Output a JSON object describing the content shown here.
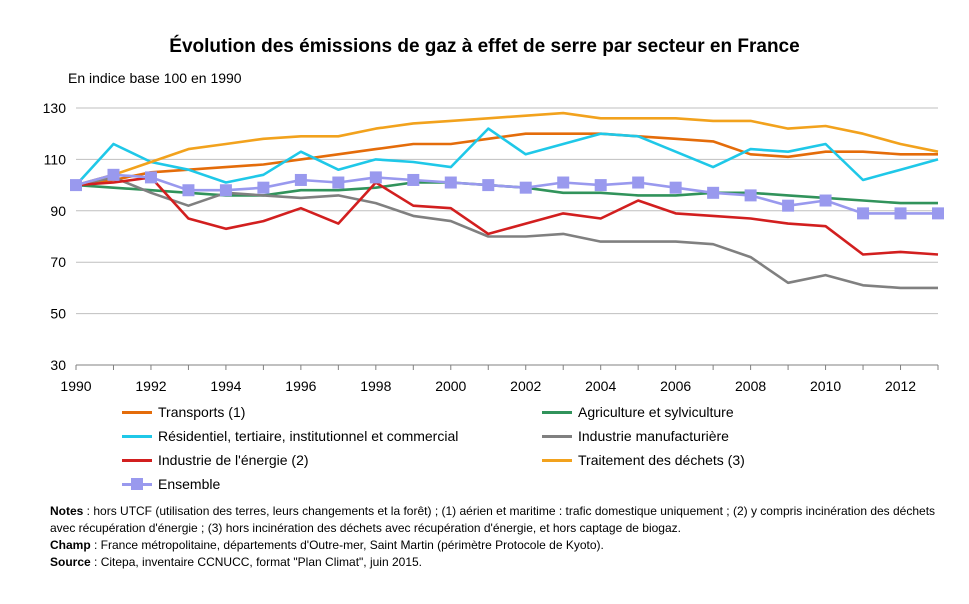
{
  "title": "Évolution des émissions de gaz à effet de serre par secteur en France",
  "subtitle": "En indice base 100 en 1990",
  "notes": {
    "notes_label": "Notes",
    "notes_text": " : hors UTCF (utilisation des terres, leurs changements et la forêt) ; (1) aérien et maritime : trafic domestique uniquement ; (2) y compris incinération des déchets avec récupération d'énergie ; (3) hors incinération des déchets avec récupération d'énergie, et hors captage de biogaz.",
    "champ_label": "Champ",
    "champ_text": " : France métropolitaine, départements d'Outre-mer, Saint Martin (périmètre Protocole de Kyoto).",
    "source_label": "Source",
    "source_text": " : Citepa, inventaire CCNUCC, format \"Plan Climat\", juin 2015."
  },
  "chart_data": {
    "type": "line",
    "x": [
      1990,
      1991,
      1992,
      1993,
      1994,
      1995,
      1996,
      1997,
      1998,
      1999,
      2000,
      2001,
      2002,
      2003,
      2004,
      2005,
      2006,
      2007,
      2008,
      2009,
      2010,
      2011,
      2012,
      2013
    ],
    "xlim": [
      1990,
      2013
    ],
    "xticks": [
      "1990",
      "1992",
      "1994",
      "1996",
      "1998",
      "2000",
      "2002",
      "2004",
      "2006",
      "2008",
      "2010",
      "2012"
    ],
    "ylim": [
      30,
      130
    ],
    "yticks": [
      "30",
      "50",
      "70",
      "90",
      "110",
      "130"
    ],
    "grid": true,
    "legend_position": "bottom",
    "series": [
      {
        "name": "Transports (1)",
        "color": "#E46C0A",
        "marker": false,
        "values": [
          100,
          102,
          105,
          106,
          107,
          108,
          110,
          112,
          114,
          116,
          116,
          118,
          120,
          120,
          120,
          119,
          118,
          117,
          112,
          111,
          113,
          113,
          112,
          112
        ]
      },
      {
        "name": "Agriculture et sylviculture",
        "color": "#31935B",
        "marker": false,
        "values": [
          100,
          99,
          98,
          97,
          96,
          96,
          98,
          98,
          99,
          101,
          101,
          100,
          99,
          97,
          97,
          96,
          96,
          97,
          97,
          96,
          95,
          94,
          93,
          93
        ]
      },
      {
        "name": "Résidentiel, tertiaire, institutionnel et commercial",
        "color": "#1FC8E8",
        "marker": false,
        "values": [
          100,
          116,
          109,
          106,
          101,
          104,
          113,
          106,
          110,
          109,
          107,
          122,
          112,
          116,
          120,
          119,
          113,
          107,
          114,
          113,
          116,
          102,
          106,
          110
        ]
      },
      {
        "name": "Industrie manufacturière",
        "color": "#808080",
        "marker": false,
        "values": [
          100,
          103,
          97,
          92,
          97,
          96,
          95,
          96,
          93,
          88,
          86,
          80,
          80,
          81,
          78,
          78,
          78,
          77,
          72,
          62,
          65,
          61,
          60,
          60
        ]
      },
      {
        "name": "Industrie de l'énergie (2)",
        "color": "#D21F1F",
        "marker": false,
        "values": [
          100,
          101,
          103,
          87,
          83,
          86,
          91,
          85,
          101,
          92,
          91,
          81,
          85,
          89,
          87,
          94,
          89,
          88,
          87,
          85,
          84,
          73,
          74,
          73
        ]
      },
      {
        "name": "Traitement des déchets (3)",
        "color": "#F2A21D",
        "marker": false,
        "values": [
          100,
          104,
          109,
          114,
          116,
          118,
          119,
          119,
          122,
          124,
          125,
          126,
          127,
          128,
          126,
          126,
          126,
          125,
          125,
          122,
          123,
          120,
          116,
          113
        ]
      },
      {
        "name": "Ensemble",
        "color": "#9999EE",
        "marker": true,
        "values": [
          100,
          104,
          103,
          98,
          98,
          99,
          102,
          101,
          103,
          102,
          101,
          100,
          99,
          101,
          100,
          101,
          99,
          97,
          96,
          92,
          94,
          89,
          89,
          89
        ]
      }
    ]
  }
}
